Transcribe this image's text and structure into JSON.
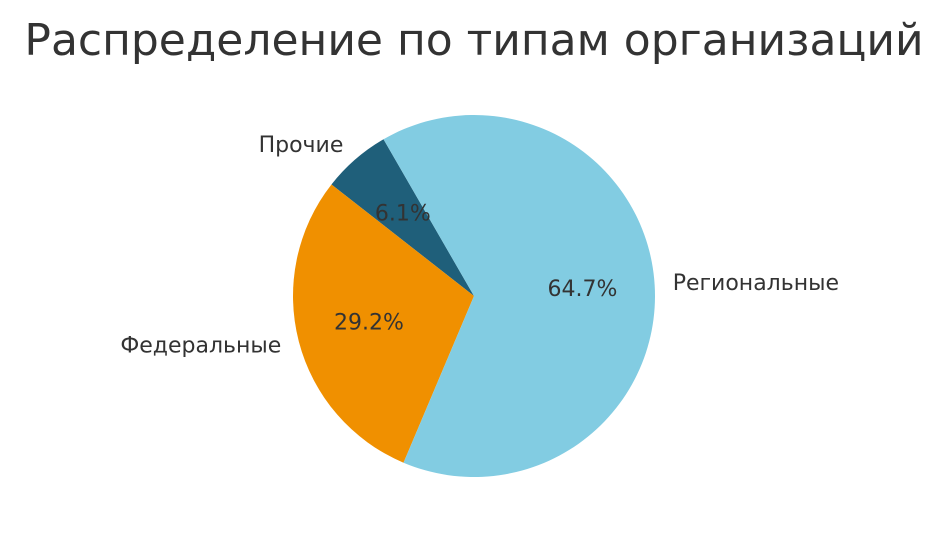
{
  "chart_data": {
    "type": "pie",
    "title": "Распределение по типам организаций",
    "start_angle_deg": 120,
    "direction": "counterclockwise",
    "slices": [
      {
        "label": "Прочие",
        "value": 6.1,
        "pct_label": "6.1%",
        "color": "#1f5f7a"
      },
      {
        "label": "Федеральные",
        "value": 29.2,
        "pct_label": "29.2%",
        "color": "#f09000"
      },
      {
        "label": "Региональные",
        "value": 64.7,
        "pct_label": "64.7%",
        "color": "#82cce2"
      }
    ]
  }
}
